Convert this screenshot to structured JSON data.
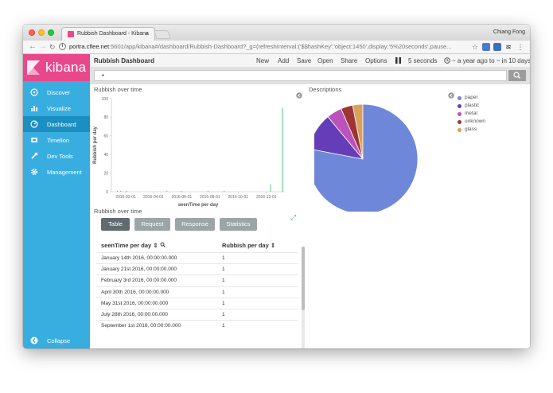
{
  "browser": {
    "tab_title": "Rubbish Dashboard - Kibana",
    "tab_close": "×",
    "user_name": "Chiang Fong",
    "url_host": "portra.cflee.net",
    "url_rest": ":5601/app/kibana#/dashboard/Rubbish-Dashboard?_g=(refreshInterval:('$$hashKey':'object:1450',display:'5%20seconds',pause...",
    "back_icon": "arrow-left-icon",
    "forward_icon": "arrow-right-icon",
    "reload_icon": "reload-icon",
    "info_icon": "info-icon",
    "bookmark_icon": "star-icon"
  },
  "sidebar": {
    "brand": "kibana",
    "accent_color": "#e8488b",
    "bg_color": "#38aee0",
    "items": [
      {
        "label": "Discover",
        "icon": "compass-icon"
      },
      {
        "label": "Visualize",
        "icon": "bar-chart-icon"
      },
      {
        "label": "Dashboard",
        "icon": "dashboard-icon"
      },
      {
        "label": "Timelion",
        "icon": "timelion-icon"
      },
      {
        "label": "Dev Tools",
        "icon": "wrench-icon"
      },
      {
        "label": "Management",
        "icon": "gear-icon"
      }
    ],
    "active": "Dashboard",
    "collapse_label": "Collapse"
  },
  "topnav": {
    "title": "Rubbish Dashboard",
    "menu": [
      "New",
      "Add",
      "Save",
      "Open",
      "Share",
      "Options"
    ],
    "pause_icon": "pause-icon",
    "refresh_interval": "5 seconds",
    "time_range": "~ a year ago to ~ in 10 days",
    "clock_icon": "clock-icon"
  },
  "query": {
    "value": "*",
    "search_icon": "search-icon"
  },
  "panels": {
    "line_chart_title": "Rubbish over time",
    "pie_chart_title": "Descriptions",
    "table_panel_title": "Rubbish over time"
  },
  "chart_data": [
    {
      "type": "bar",
      "title": "Rubbish over time",
      "xlabel": "seenTime per day",
      "ylabel": "Rubbish per day",
      "ylim": [
        0,
        100
      ],
      "yticks": [
        "0",
        "20",
        "40",
        "60",
        "80",
        "100"
      ],
      "xticks": [
        "2016-02-01",
        "2016-04-01",
        "2016-06-01",
        "2016-08-01",
        "2016-10-01",
        "2016-12-01"
      ],
      "x": [
        "2016-01-14",
        "2016-01-21",
        "2016-02-03",
        "2016-04-30",
        "2016-05-31",
        "2016-07-28",
        "2016-09-01",
        "2016-12-10",
        "2017-01-05"
      ],
      "values": [
        1,
        1,
        1,
        1,
        1,
        1,
        1,
        8,
        90
      ],
      "bar_color": "#57c17b",
      "grid": false
    },
    {
      "type": "pie",
      "title": "Descriptions",
      "slices": [
        {
          "label": "paper",
          "value": 78,
          "color": "#6f87d8"
        },
        {
          "label": "plastic",
          "value": 11,
          "color": "#663db8"
        },
        {
          "label": "metal",
          "value": 4.5,
          "color": "#bc52bc"
        },
        {
          "label": "unknown",
          "value": 3.5,
          "color": "#9e3533"
        },
        {
          "label": "glass",
          "value": 3,
          "color": "#daa05d"
        }
      ],
      "legend_position": "right"
    }
  ],
  "inspector": {
    "buttons": [
      "Table",
      "Request",
      "Response",
      "Statistics"
    ],
    "active": "Table",
    "expand_icon": "expand-icon",
    "columns": [
      "seenTime per day ⇕",
      "Rubbish per day ⇕"
    ],
    "column_search_icon": "search-icon",
    "rows": [
      [
        "January 14th 2016, 00:00:00.000",
        "1"
      ],
      [
        "January 21st 2016, 00:00:00.000",
        "1"
      ],
      [
        "February 3rd 2016, 00:00:00.000",
        "1"
      ],
      [
        "April 30th 2016, 00:00:00.000",
        "1"
      ],
      [
        "May 31st 2016, 00:00:00.000",
        "1"
      ],
      [
        "July 28th 2016, 00:00:00.000",
        "1"
      ],
      [
        "September 1st 2016, 00:00:00.000",
        "1"
      ]
    ]
  }
}
